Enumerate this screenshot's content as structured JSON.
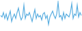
{
  "chart_data": {
    "type": "line",
    "color": "#5aaee0",
    "tick_labels": false,
    "grid": false,
    "categories": [
      null,
      null,
      null,
      null,
      null,
      null,
      null,
      null,
      null,
      null,
      null,
      null,
      null,
      null,
      null,
      null,
      null,
      null,
      null,
      null,
      null,
      null,
      null,
      null,
      null,
      null,
      null,
      null,
      null,
      null,
      null,
      null,
      null,
      null,
      null,
      null,
      null,
      null,
      null,
      null,
      null,
      null,
      null,
      null,
      null,
      null,
      null,
      null,
      null,
      null,
      null,
      null,
      null,
      null,
      null,
      null,
      null,
      null,
      null,
      null
    ],
    "values": [
      50,
      45,
      60,
      40,
      55,
      35,
      50,
      65,
      30,
      45,
      55,
      40,
      60,
      75,
      50,
      35,
      45,
      85,
      40,
      55,
      50,
      60,
      45,
      30,
      50,
      70,
      40,
      55,
      45,
      50,
      35,
      55,
      60,
      40,
      50,
      20,
      45,
      55,
      65,
      50,
      40,
      55,
      95,
      45,
      50,
      35,
      60,
      40,
      55,
      50,
      45,
      60,
      90,
      40,
      55,
      50,
      85,
      45,
      60,
      50
    ],
    "ylim": [
      0,
      100
    ]
  }
}
